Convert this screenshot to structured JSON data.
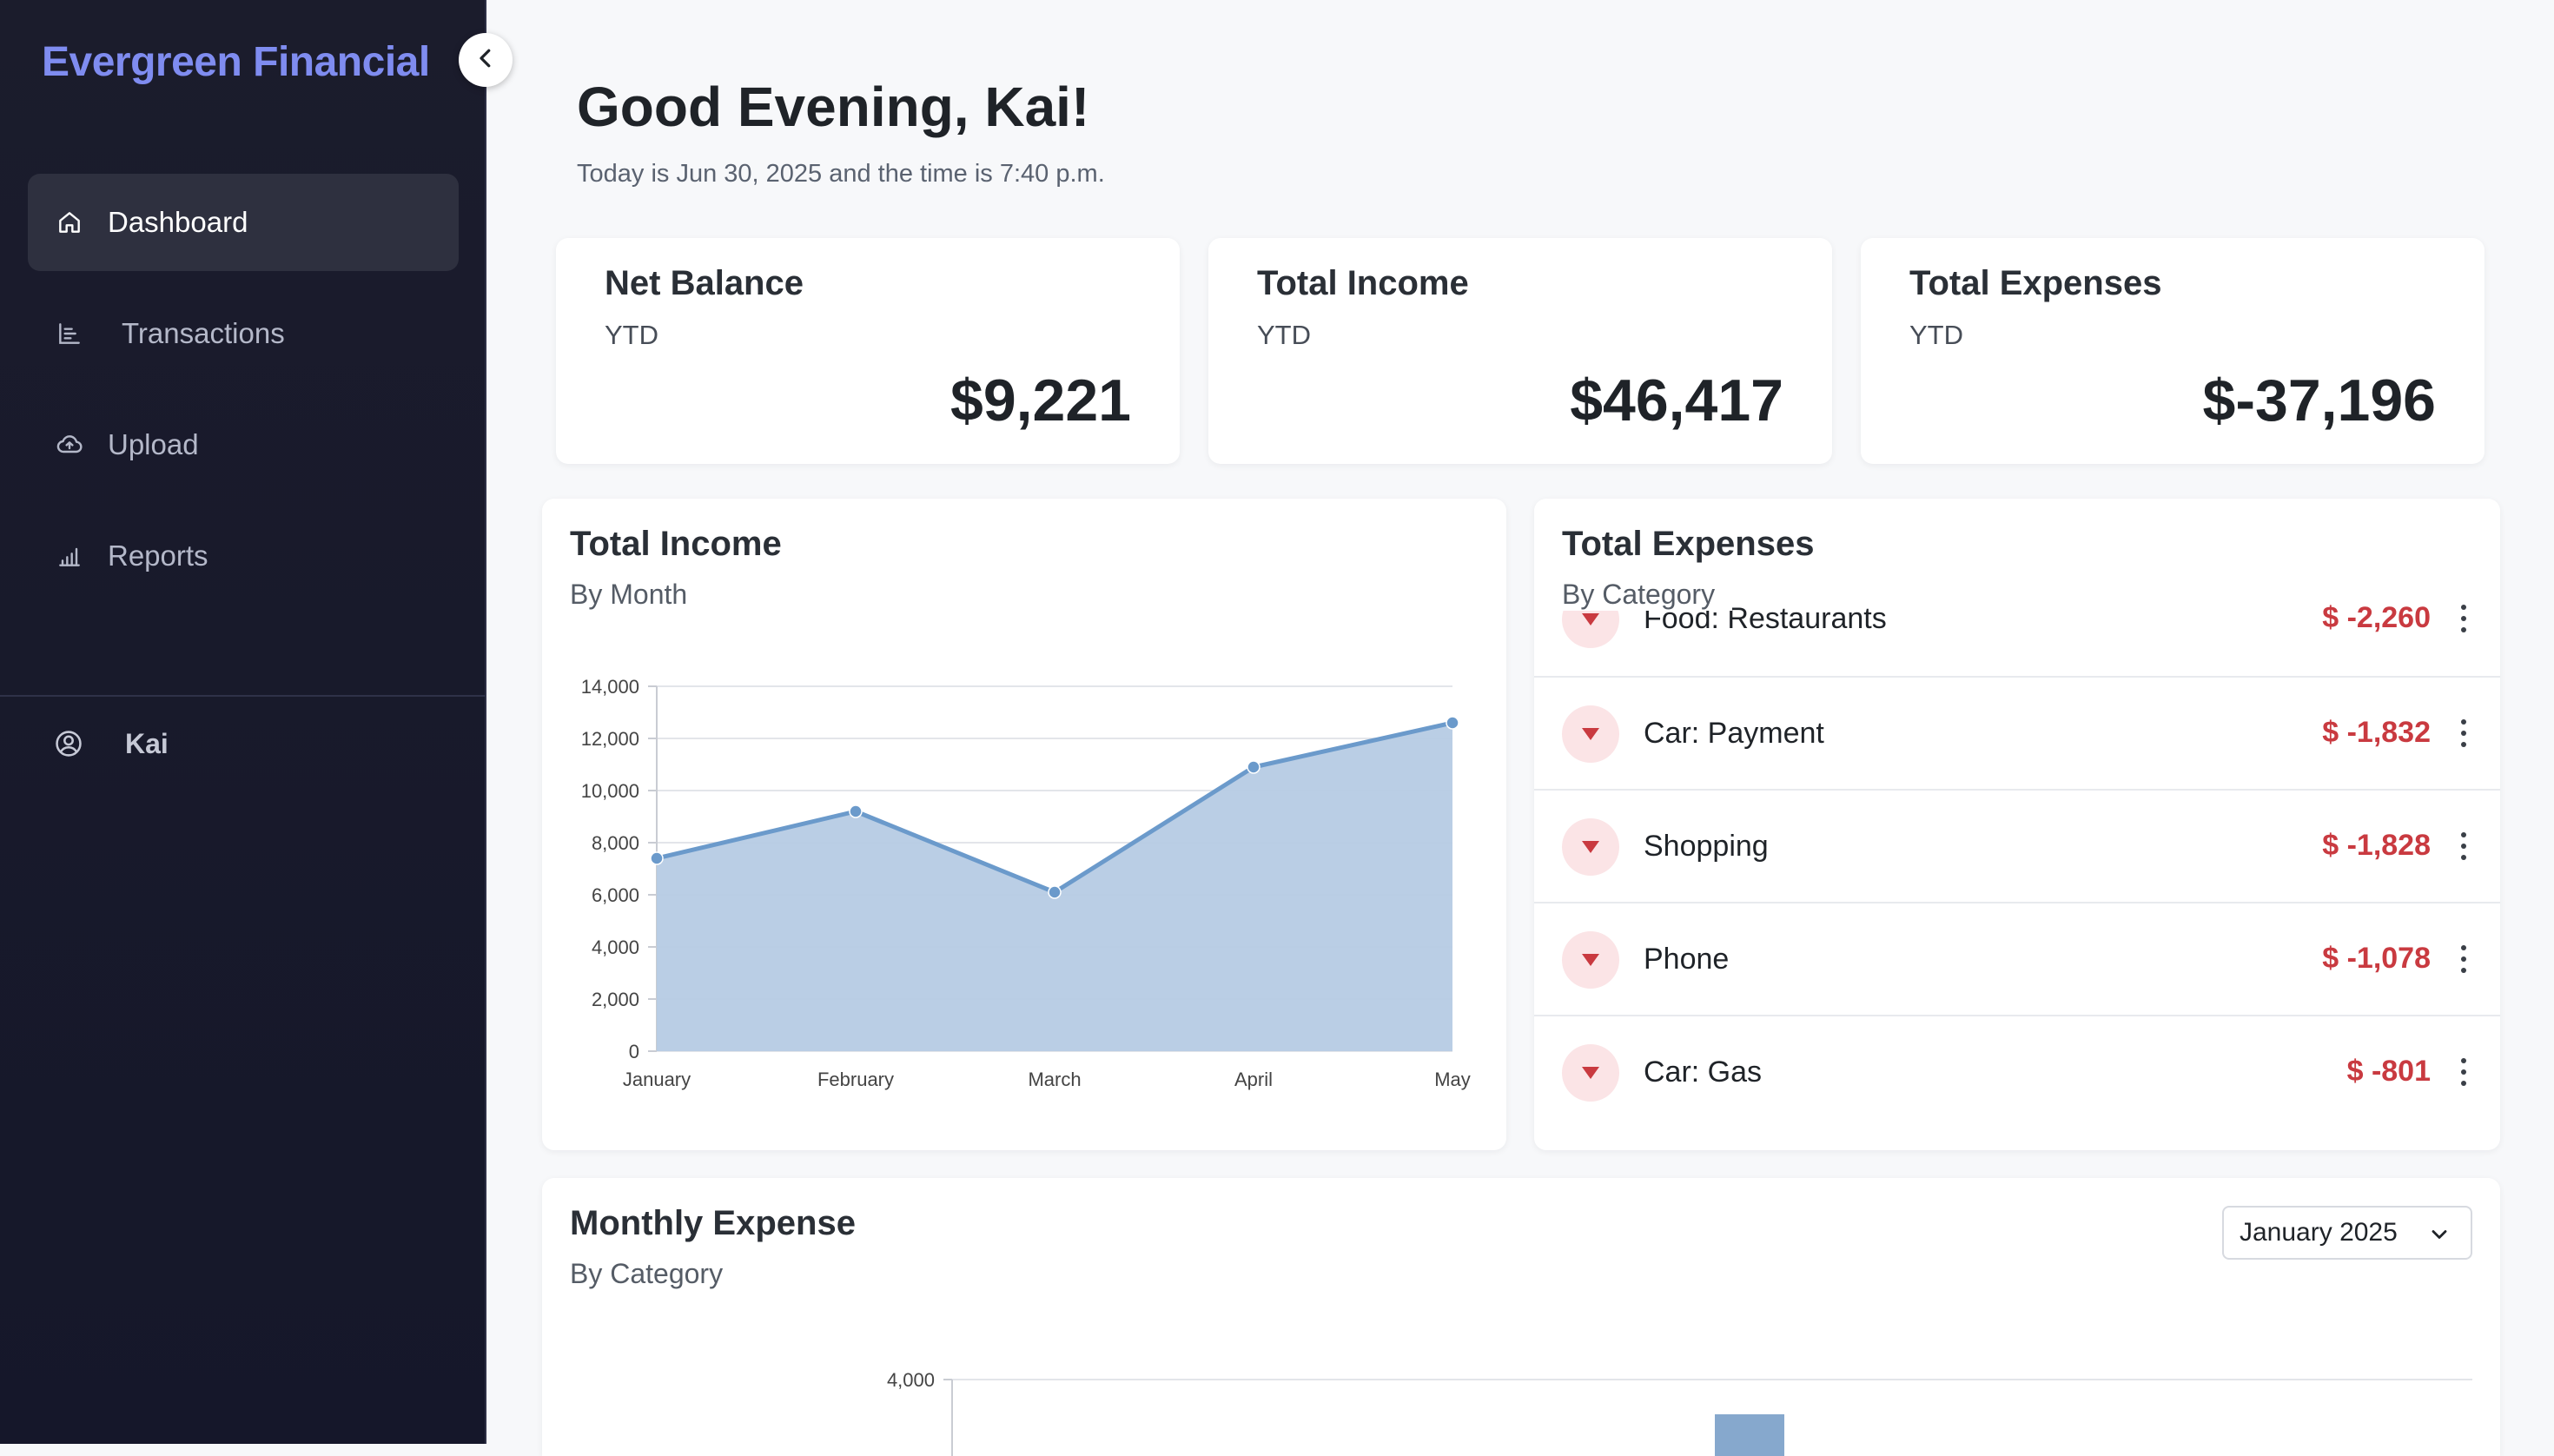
{
  "sidebar": {
    "brand": "Evergreen Financial",
    "nav": [
      {
        "label": "Dashboard",
        "icon": "home-icon",
        "active": true
      },
      {
        "label": "Transactions",
        "icon": "list-chart-icon",
        "active": false
      },
      {
        "label": "Upload",
        "icon": "cloud-upload-icon",
        "active": false
      },
      {
        "label": "Reports",
        "icon": "bar-chart-icon",
        "active": false
      }
    ],
    "user": {
      "name": "Kai",
      "icon": "user-circle-icon"
    },
    "collapse_icon": "chevron-left-icon"
  },
  "header": {
    "greeting": "Good Evening, Kai!",
    "subtitle": "Today is Jun 30, 2025 and the time is 7:40 p.m."
  },
  "stats": [
    {
      "title": "Net Balance",
      "period": "YTD",
      "value": "$9,221"
    },
    {
      "title": "Total Income",
      "period": "YTD",
      "value": "$46,417"
    },
    {
      "title": "Total Expenses",
      "period": "YTD",
      "value": "$-37,196"
    }
  ],
  "income_panel": {
    "title": "Total Income",
    "subtitle": "By Month"
  },
  "expenses_panel": {
    "title": "Total Expenses",
    "subtitle": "By Category",
    "items": [
      {
        "label": "Food: Restaurants",
        "amount": "$ -2,260"
      },
      {
        "label": "Car: Payment",
        "amount": "$ -1,832"
      },
      {
        "label": "Shopping",
        "amount": "$ -1,828"
      },
      {
        "label": "Phone",
        "amount": "$ -1,078"
      },
      {
        "label": "Car: Gas",
        "amount": "$ -801"
      }
    ],
    "item_icon": "caret-down-icon",
    "menu_icon": "more-vertical-icon"
  },
  "monthly_panel": {
    "title": "Monthly Expense",
    "subtitle": "By Category",
    "select_value": "January 2025",
    "select_icon": "chevron-down-icon"
  },
  "colors": {
    "accent": "#7f8cf0",
    "sidebar_bg": "#1b1c2c",
    "negative": "#c93a40",
    "chart_line": "#6b9acb",
    "chart_fill": "#b6cbe4"
  },
  "chart_data": [
    {
      "type": "area",
      "categories": [
        "January",
        "February",
        "March",
        "April",
        "May"
      ],
      "values": [
        7400,
        9200,
        6100,
        10900,
        12600
      ],
      "yticks": [
        "0",
        "2,000",
        "4,000",
        "6,000",
        "8,000",
        "10,000",
        "12,000",
        "14,000"
      ],
      "ylim": [
        0,
        14000
      ],
      "grid": true
    },
    {
      "type": "bar",
      "yticks": [
        "4,000"
      ],
      "ylim": [
        0,
        4000
      ],
      "values": [
        3800
      ],
      "grid": true
    }
  ]
}
